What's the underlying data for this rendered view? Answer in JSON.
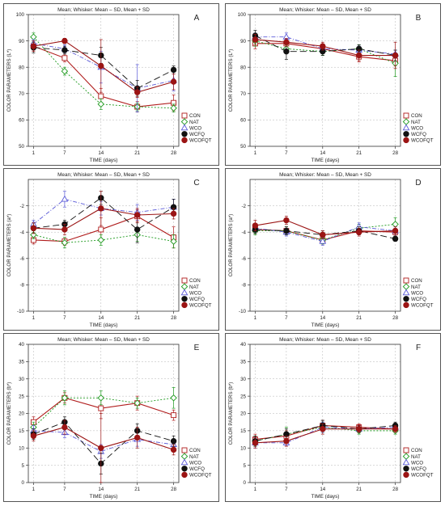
{
  "figure": {
    "series_styles": [
      {
        "name": "CON",
        "color": "#b01c1c",
        "marker": "square-open",
        "line": "solid"
      },
      {
        "name": "NAT",
        "color": "#1f9a1f",
        "marker": "diamond-open",
        "line": "dotted"
      },
      {
        "name": "WCO",
        "color": "#5a5ad8",
        "marker": "triangle-open",
        "line": "dashdot-thin"
      },
      {
        "name": "WCFQ",
        "color": "#111111",
        "marker": "circle-filled",
        "line": "longdash"
      },
      {
        "name": "WCOFQT",
        "color": "#9b1414",
        "marker": "circle-filled",
        "line": "solid"
      }
    ]
  },
  "chart_data": [
    {
      "panel": "A",
      "type": "line",
      "title": "Mean; Whisker: Mean – SD, Mean + SD",
      "xlabel": "TIME (days)",
      "ylabel": "COLOR PARAMETERS (L*)",
      "x": [
        1,
        7,
        14,
        21,
        28
      ],
      "ylim": [
        50,
        100
      ],
      "yticks": [
        50,
        60,
        70,
        80,
        90,
        100
      ],
      "legend": "right",
      "series": [
        {
          "name": "CON",
          "values": [
            88,
            83.5,
            69,
            65,
            66.5
          ],
          "sd": [
            1.5,
            1.5,
            3,
            2,
            3
          ]
        },
        {
          "name": "NAT",
          "values": [
            91.5,
            78.5,
            66,
            65,
            64.5
          ],
          "sd": [
            1.5,
            1.5,
            2,
            1.5,
            1.5
          ]
        },
        {
          "name": "WCO",
          "values": [
            89,
            87,
            80,
            72,
            75
          ],
          "sd": [
            1.5,
            1.5,
            6,
            9,
            4
          ]
        },
        {
          "name": "WCFQ",
          "values": [
            87.5,
            86.5,
            84.5,
            72,
            79
          ],
          "sd": [
            2,
            1.5,
            3,
            3,
            1.5
          ]
        },
        {
          "name": "WCOFQT",
          "values": [
            88,
            90,
            80.5,
            70.5,
            74.5
          ],
          "sd": [
            2,
            1,
            10,
            2,
            3
          ]
        }
      ]
    },
    {
      "panel": "B",
      "type": "line",
      "title": "Mean; Whisker: Mean – SD, Mean + SD",
      "xlabel": "TIME (days)",
      "ylabel": "COLOR PARAMETERS (L*)",
      "x": [
        1,
        7,
        14,
        21,
        28
      ],
      "ylim": [
        50,
        100
      ],
      "yticks": [
        50,
        60,
        70,
        80,
        90,
        100
      ],
      "legend": "right",
      "series": [
        {
          "name": "CON",
          "values": [
            89,
            89,
            87,
            84,
            82.5
          ],
          "sd": [
            2,
            1.5,
            1.5,
            2,
            2
          ]
        },
        {
          "name": "NAT",
          "values": [
            90,
            87,
            86,
            87,
            81.5
          ],
          "sd": [
            2,
            1.5,
            1.5,
            1.5,
            5
          ]
        },
        {
          "name": "WCO",
          "values": [
            91.5,
            91.5,
            87,
            86.5,
            85
          ],
          "sd": [
            1.5,
            1.5,
            1.5,
            1.5,
            1.5
          ]
        },
        {
          "name": "WCFQ",
          "values": [
            92,
            86,
            86,
            87,
            84.5
          ],
          "sd": [
            2,
            3,
            1.5,
            1.5,
            2
          ]
        },
        {
          "name": "WCOFQT",
          "values": [
            90.5,
            89.5,
            88,
            84.5,
            84.5
          ],
          "sd": [
            2,
            1.5,
            1.5,
            2,
            5
          ]
        }
      ]
    },
    {
      "panel": "C",
      "type": "line",
      "title": "Mean; Whisker: Mean – SD, Mean + SD",
      "xlabel": "TIME (days)",
      "ylabel": "COLOR PARAMETERS (a*)",
      "x": [
        1,
        7,
        14,
        21,
        28
      ],
      "ylim": [
        -10,
        0
      ],
      "yticks": [
        -10,
        -8,
        -6,
        -4,
        -2
      ],
      "legend": "right",
      "series": [
        {
          "name": "CON",
          "values": [
            -4.6,
            -4.7,
            -3.8,
            -2.8,
            -4.4
          ],
          "sd": [
            0.3,
            0.3,
            0.9,
            0.5,
            0.8
          ]
        },
        {
          "name": "NAT",
          "values": [
            -4.2,
            -4.8,
            -4.6,
            -4.2,
            -4.7
          ],
          "sd": [
            0.3,
            0.4,
            0.4,
            0.5,
            0.5
          ]
        },
        {
          "name": "WCO",
          "values": [
            -3.4,
            -1.5,
            -2.2,
            -2.5,
            -2.1
          ],
          "sd": [
            0.3,
            0.6,
            0.5,
            0.6,
            0.6
          ]
        },
        {
          "name": "WCFQ",
          "values": [
            -3.7,
            -3.4,
            -1.4,
            -3.8,
            -2.1
          ],
          "sd": [
            0.4,
            0.3,
            0.5,
            1,
            0.6
          ]
        },
        {
          "name": "WCOFQT",
          "values": [
            -3.7,
            -3.8,
            -2.2,
            -2.7,
            -2.6
          ],
          "sd": [
            0.4,
            0.4,
            1.3,
            0.5,
            0.4
          ]
        }
      ]
    },
    {
      "panel": "D",
      "type": "line",
      "title": "Mean; Whisker: Mean – SD, Mean + SD",
      "xlabel": "TIME (days)",
      "ylabel": "COLOR PARAMETERS (a*)",
      "x": [
        1,
        7,
        14,
        21,
        28
      ],
      "ylim": [
        -10,
        0
      ],
      "yticks": [
        -10,
        -8,
        -6,
        -4,
        -2
      ],
      "legend": "right",
      "series": [
        {
          "name": "CON",
          "values": [
            -3.8,
            -3.9,
            -4.6,
            -3.9,
            -4
          ],
          "sd": [
            0.3,
            0.3,
            0.3,
            0.3,
            0.3
          ]
        },
        {
          "name": "NAT",
          "values": [
            -3.9,
            -3.9,
            -4.6,
            -3.7,
            -3.4
          ],
          "sd": [
            0.3,
            0.3,
            0.3,
            0.3,
            0.5
          ]
        },
        {
          "name": "WCO",
          "values": [
            -3.7,
            -4,
            -4.7,
            -3.6,
            -3.9
          ],
          "sd": [
            0.3,
            0.3,
            0.3,
            0.3,
            0.3
          ]
        },
        {
          "name": "WCFQ",
          "values": [
            -3.8,
            -3.9,
            -4.2,
            -3.9,
            -4.5
          ],
          "sd": [
            0.3,
            0.3,
            0.3,
            0.3,
            0.2
          ]
        },
        {
          "name": "WCOFQT",
          "values": [
            -3.5,
            -3.1,
            -4.2,
            -4,
            -3.9
          ],
          "sd": [
            0.4,
            0.3,
            0.3,
            0.3,
            0.3
          ]
        }
      ]
    },
    {
      "panel": "E",
      "type": "line",
      "title": "Mean; Whisker: Mean – SD, Mean + SD",
      "xlabel": "TIME (days)",
      "ylabel": "COLOR PARAMETERS (b*)",
      "x": [
        1,
        7,
        14,
        21,
        28
      ],
      "ylim": [
        0,
        40
      ],
      "yticks": [
        0,
        5,
        10,
        15,
        20,
        25,
        30,
        35,
        40
      ],
      "legend": "right",
      "series": [
        {
          "name": "CON",
          "values": [
            17.5,
            24.5,
            21.5,
            23,
            19.5
          ],
          "sd": [
            1.5,
            1.5,
            3,
            2,
            1.5
          ]
        },
        {
          "name": "NAT",
          "values": [
            16,
            24.5,
            24.5,
            23,
            24.5
          ],
          "sd": [
            1.5,
            2,
            2,
            1.5,
            3
          ]
        },
        {
          "name": "WCO",
          "values": [
            15,
            14.5,
            9,
            12.5,
            11
          ],
          "sd": [
            1.5,
            1.5,
            2,
            2,
            1.5
          ]
        },
        {
          "name": "WCFQ",
          "values": [
            14,
            17.5,
            5.5,
            15,
            12
          ],
          "sd": [
            1.5,
            1.5,
            3,
            2,
            1.5
          ]
        },
        {
          "name": "WCOFQT",
          "values": [
            13.5,
            16,
            10,
            13,
            9.5
          ],
          "sd": [
            1.5,
            2,
            10,
            3,
            1.5
          ]
        }
      ]
    },
    {
      "panel": "F",
      "type": "line",
      "title": "Mean; Whisker: Mean – SD, Mean + SD",
      "xlabel": "TIME (days)",
      "ylabel": "COLOR PARAMETERS (b*)",
      "x": [
        1,
        7,
        14,
        21,
        28
      ],
      "ylim": [
        0,
        40
      ],
      "yticks": [
        0,
        5,
        10,
        15,
        20,
        25,
        30,
        35,
        40
      ],
      "legend": "right",
      "series": [
        {
          "name": "CON",
          "values": [
            12.5,
            13.5,
            16.5,
            16,
            15.5
          ],
          "sd": [
            1.5,
            1.5,
            1.5,
            1,
            1
          ]
        },
        {
          "name": "NAT",
          "values": [
            12,
            14,
            16,
            15,
            15
          ],
          "sd": [
            1.5,
            2,
            1.5,
            1,
            1
          ]
        },
        {
          "name": "WCO",
          "values": [
            11.5,
            11.5,
            16,
            15.5,
            16
          ],
          "sd": [
            1.5,
            1,
            1.5,
            1,
            1
          ]
        },
        {
          "name": "WCFQ",
          "values": [
            12,
            14,
            16.5,
            15.5,
            16.5
          ],
          "sd": [
            1.5,
            1.5,
            1.5,
            1,
            1
          ]
        },
        {
          "name": "WCOFQT",
          "values": [
            11.5,
            12,
            15.5,
            15.5,
            15.5
          ],
          "sd": [
            1.5,
            1.5,
            1.5,
            1,
            1
          ]
        }
      ]
    }
  ]
}
